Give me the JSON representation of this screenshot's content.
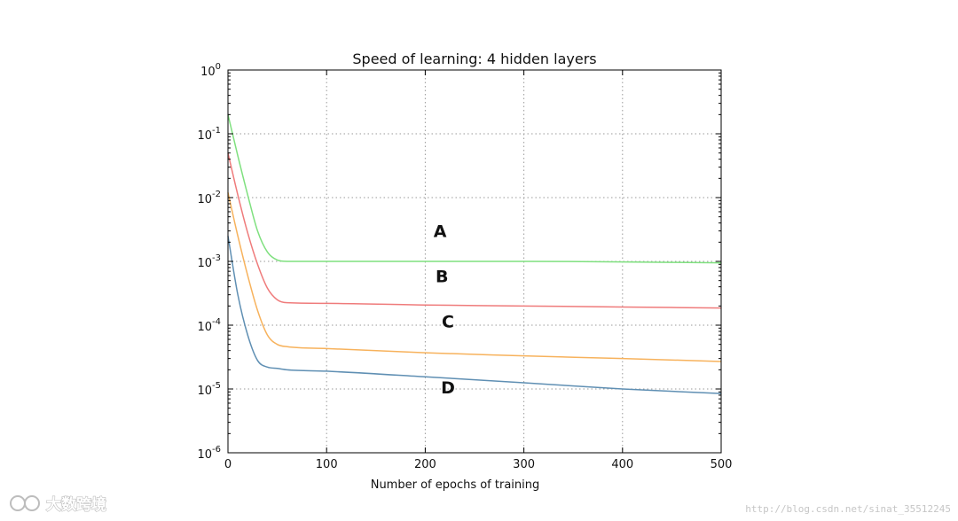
{
  "chart_data": {
    "type": "line",
    "title": "Speed of learning: 4 hidden layers",
    "xlabel": "Number of epochs of training",
    "ylabel": "",
    "xlim": [
      0,
      500
    ],
    "ylim_exponents": [
      -6,
      0
    ],
    "yscale": "log",
    "grid": true,
    "x_ticks": [
      0,
      100,
      200,
      300,
      400,
      500
    ],
    "y_ticks": [
      {
        "base": "10",
        "exp": "0"
      },
      {
        "base": "10",
        "exp": "-1"
      },
      {
        "base": "10",
        "exp": "-2"
      },
      {
        "base": "10",
        "exp": "-3"
      },
      {
        "base": "10",
        "exp": "-4"
      },
      {
        "base": "10",
        "exp": "-5"
      },
      {
        "base": "10",
        "exp": "-6"
      }
    ],
    "series": [
      {
        "name": "A",
        "color": "#7fe07f",
        "x": [
          0,
          10,
          20,
          30,
          40,
          50,
          60,
          100,
          200,
          300,
          400,
          500
        ],
        "y": [
          0.2,
          0.045,
          0.011,
          0.003,
          0.0014,
          0.00105,
          0.001,
          0.001,
          0.001,
          0.001,
          0.00098,
          0.00095
        ]
      },
      {
        "name": "B",
        "color": "#ef7b7b",
        "x": [
          0,
          10,
          20,
          30,
          40,
          50,
          60,
          100,
          200,
          300,
          400,
          500
        ],
        "y": [
          0.05,
          0.011,
          0.0028,
          0.0009,
          0.00038,
          0.00025,
          0.000225,
          0.00022,
          0.000207,
          0.0002,
          0.000193,
          0.000186
        ]
      },
      {
        "name": "C",
        "color": "#f7b25c",
        "x": [
          0,
          10,
          20,
          30,
          40,
          50,
          60,
          100,
          200,
          300,
          400,
          500
        ],
        "y": [
          0.012,
          0.0025,
          0.0006,
          0.00017,
          7e-05,
          5e-05,
          4.6e-05,
          4.3e-05,
          3.7e-05,
          3.3e-05,
          3e-05,
          2.7e-05
        ]
      },
      {
        "name": "D",
        "color": "#5f8fb3",
        "x": [
          0,
          10,
          20,
          30,
          40,
          50,
          60,
          100,
          200,
          300,
          400,
          500
        ],
        "y": [
          0.0025,
          0.0003,
          7e-05,
          2.8e-05,
          2.2e-05,
          2.1e-05,
          2e-05,
          1.9e-05,
          1.55e-05,
          1.25e-05,
          1e-05,
          8.5e-06
        ]
      }
    ],
    "annotations": [
      {
        "text": "A",
        "x": 215,
        "y": 0.0024
      },
      {
        "text": "B",
        "x": 217,
        "y": 0.00047
      },
      {
        "text": "C",
        "x": 223,
        "y": 9.2e-05
      },
      {
        "text": "D",
        "x": 223,
        "y": 8.5e-06
      }
    ]
  },
  "watermark": {
    "logo_text": "大数跨境",
    "url": "http://blog.csdn.net/sinat_35512245"
  }
}
